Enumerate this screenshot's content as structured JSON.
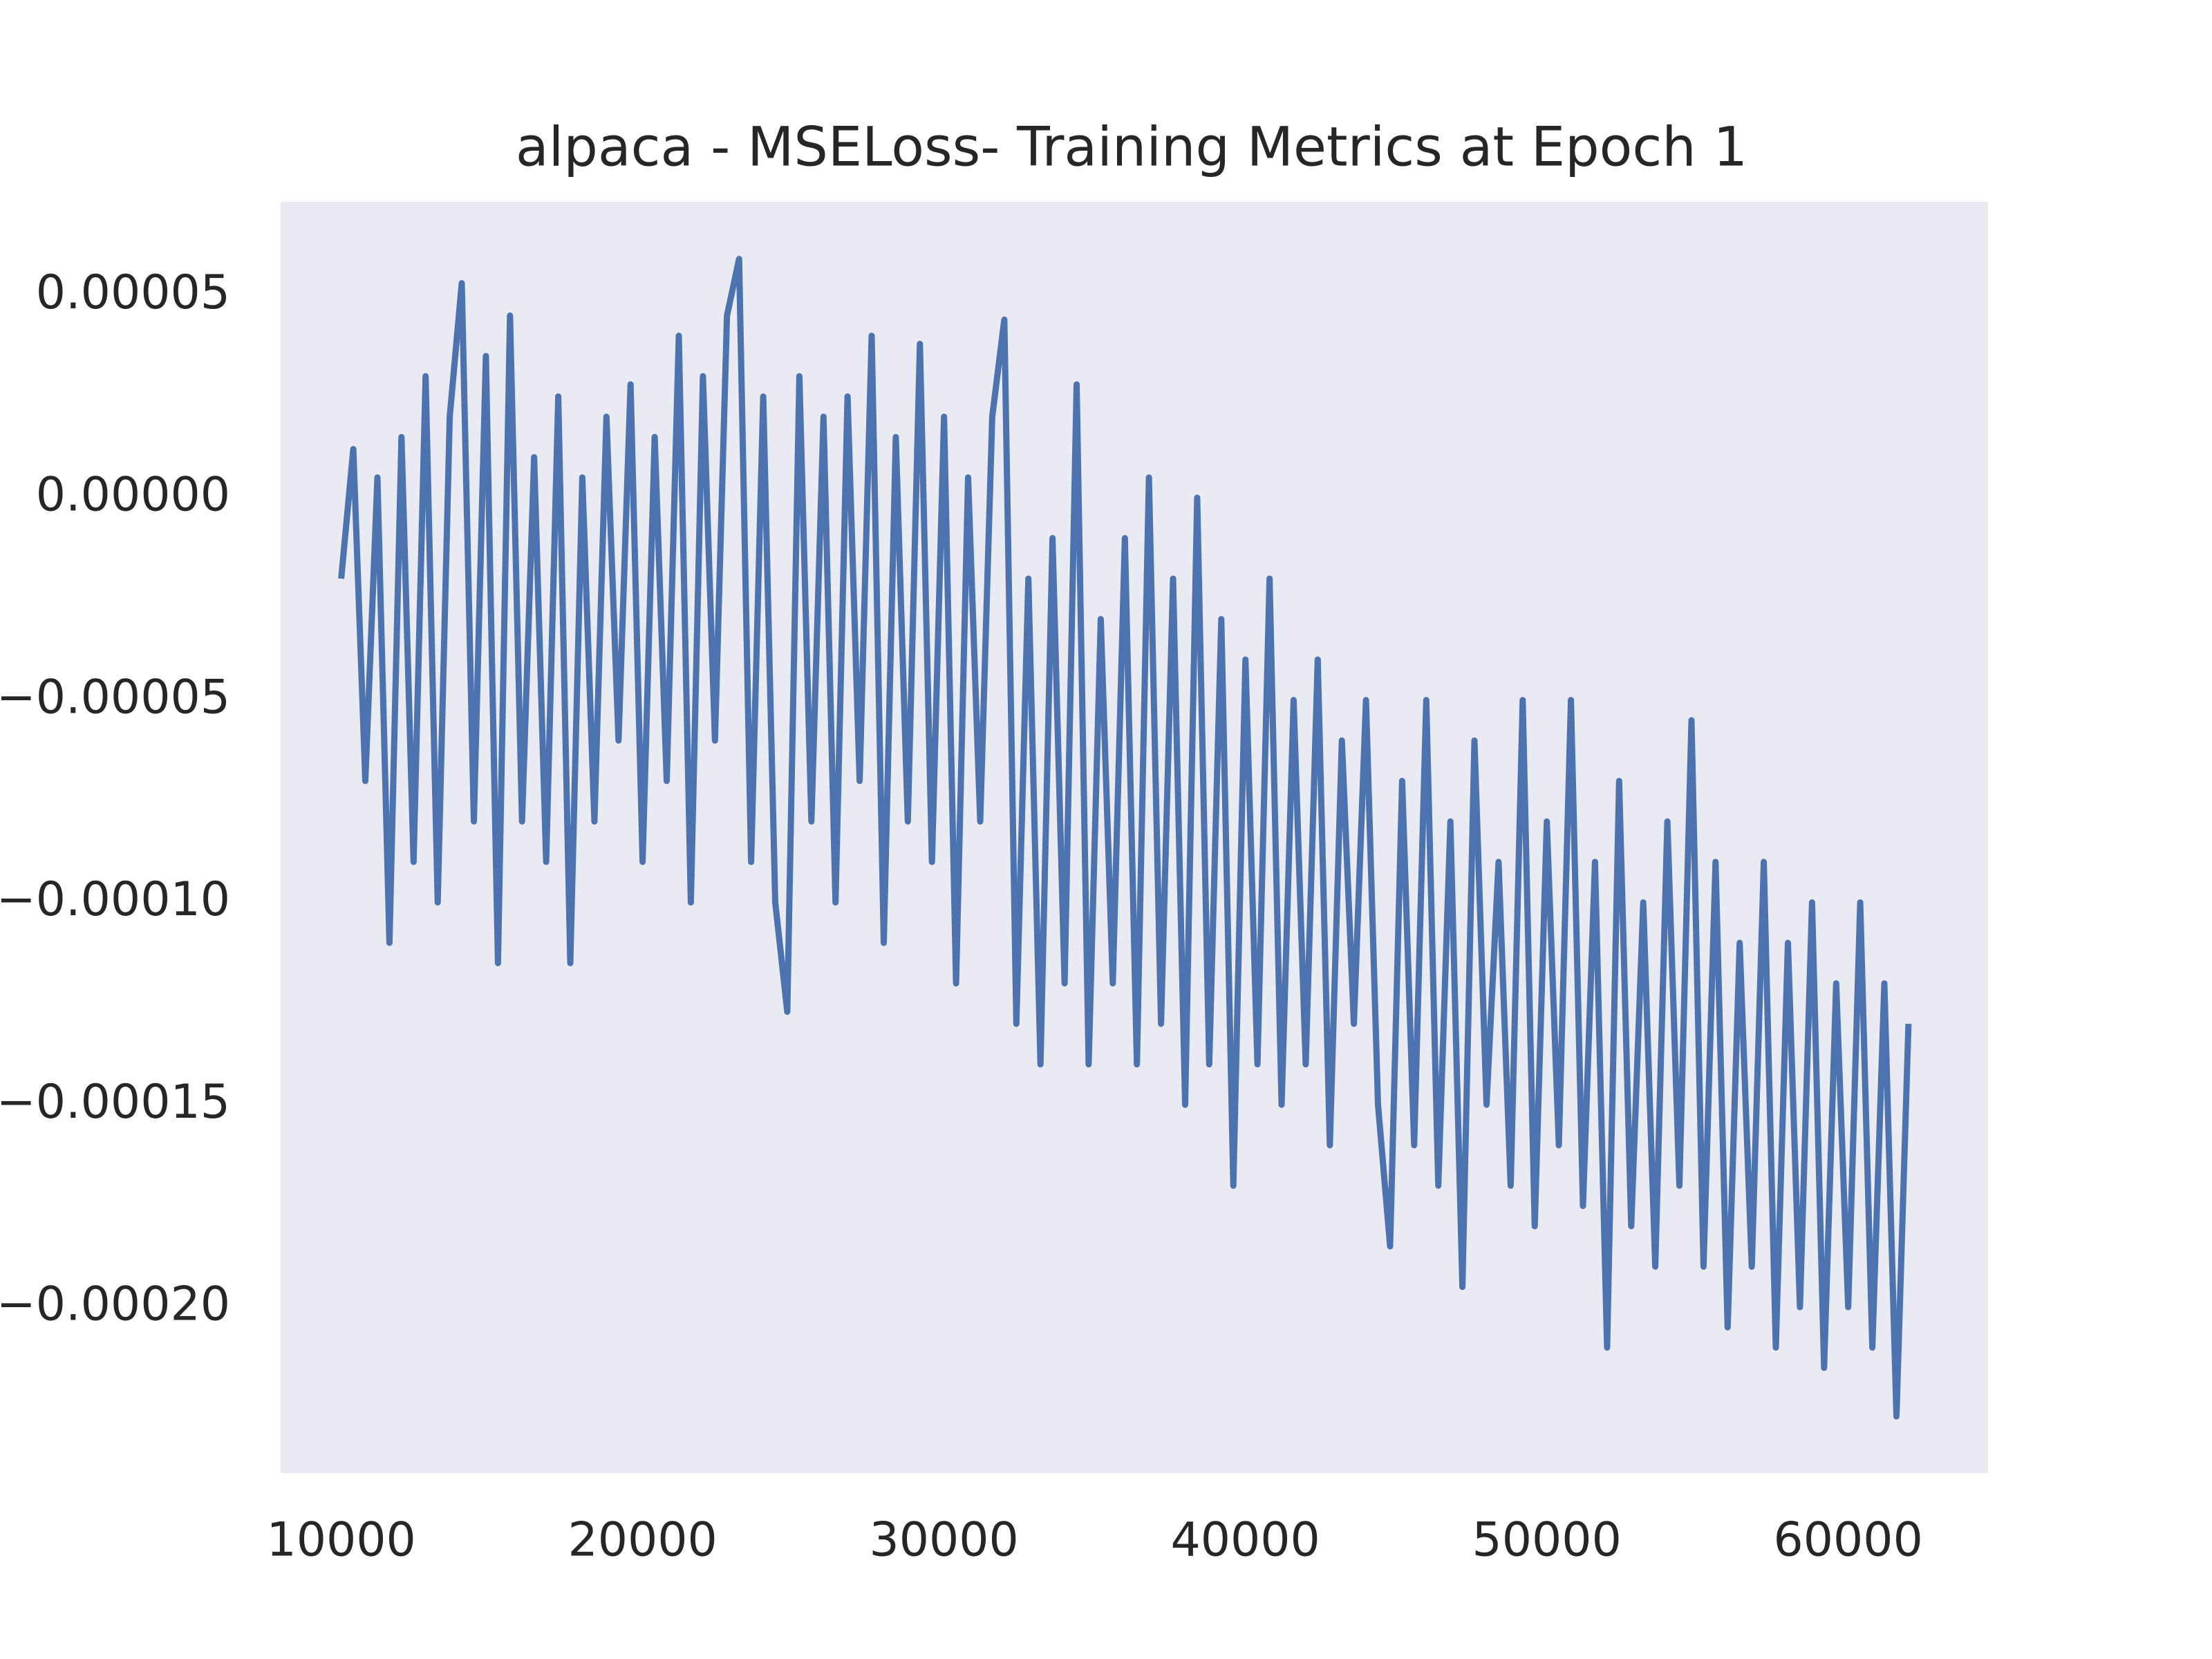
{
  "chart_data": {
    "type": "line",
    "title": "alpaca - MSELoss- Training Metrics at Epoch 1",
    "x": [
      10000,
      10400,
      10800,
      11200,
      11600,
      12000,
      12400,
      12800,
      13200,
      13600,
      14000,
      14400,
      14800,
      15200,
      15600,
      16000,
      16400,
      16800,
      17200,
      17600,
      18000,
      18400,
      18800,
      19200,
      19600,
      20000,
      20400,
      20800,
      21200,
      21600,
      22000,
      22400,
      22800,
      23200,
      23600,
      24000,
      24400,
      24800,
      25200,
      25600,
      26000,
      26400,
      26800,
      27200,
      27600,
      28000,
      28400,
      28800,
      29200,
      29600,
      30000,
      30400,
      30800,
      31200,
      31600,
      32000,
      32400,
      32800,
      33200,
      33600,
      34000,
      34400,
      34800,
      35200,
      35600,
      36000,
      36400,
      36800,
      37200,
      37600,
      38000,
      38400,
      38800,
      39200,
      39600,
      40000,
      40400,
      40800,
      41200,
      41600,
      42000,
      42400,
      42800,
      43200,
      43600,
      44000,
      44400,
      44800,
      45200,
      45600,
      46000,
      46400,
      46800,
      47200,
      47600,
      48000,
      48400,
      48800,
      49200,
      49600,
      50000,
      50400,
      50800,
      51200,
      51600,
      52000,
      52400,
      52800,
      53200,
      53600,
      54000,
      54400,
      54800,
      55200,
      55600,
      56000,
      56400,
      56800,
      57200,
      57600,
      58000,
      58400,
      58800,
      59200,
      59600,
      60000,
      60400,
      60800,
      61200,
      61600,
      62000
    ],
    "series": [
      {
        "color": "#4c72b0",
        "values": [
          -2e-05,
          1.2e-05,
          -7e-05,
          5e-06,
          -0.00011,
          1.5e-05,
          -9e-05,
          3e-05,
          -0.0001,
          2e-05,
          5.3e-05,
          -8e-05,
          3.5e-05,
          -0.000115,
          4.5e-05,
          -8e-05,
          1e-05,
          -9e-05,
          2.5e-05,
          -0.000115,
          5e-06,
          -8e-05,
          2e-05,
          -6e-05,
          2.8e-05,
          -9e-05,
          1.5e-05,
          -7e-05,
          4e-05,
          -0.0001,
          3e-05,
          -6e-05,
          4.5e-05,
          5.9e-05,
          -9e-05,
          2.5e-05,
          -0.0001,
          -0.000127,
          3e-05,
          -8e-05,
          2e-05,
          -0.0001,
          2.5e-05,
          -7e-05,
          4e-05,
          -0.00011,
          1.5e-05,
          -8e-05,
          3.8e-05,
          -9e-05,
          2e-05,
          -0.00012,
          5e-06,
          -8e-05,
          2e-05,
          4.4e-05,
          -0.00013,
          -2e-05,
          -0.00014,
          -1e-05,
          -0.00012,
          2.8e-05,
          -0.00014,
          -3e-05,
          -0.00012,
          -1e-05,
          -0.00014,
          5e-06,
          -0.00013,
          -2e-05,
          -0.00015,
          0,
          -0.00014,
          -3e-05,
          -0.00017,
          -4e-05,
          -0.00014,
          -2e-05,
          -0.00015,
          -5e-05,
          -0.00014,
          -4e-05,
          -0.00016,
          -6e-05,
          -0.00013,
          -5e-05,
          -0.00015,
          -0.000185,
          -7e-05,
          -0.00016,
          -5e-05,
          -0.00017,
          -8e-05,
          -0.000195,
          -6e-05,
          -0.00015,
          -9e-05,
          -0.00017,
          -5e-05,
          -0.00018,
          -8e-05,
          -0.00016,
          -5e-05,
          -0.000175,
          -9e-05,
          -0.00021,
          -7e-05,
          -0.00018,
          -0.0001,
          -0.00019,
          -8e-05,
          -0.00017,
          -5.5e-05,
          -0.00019,
          -9e-05,
          -0.000205,
          -0.00011,
          -0.00019,
          -9e-05,
          -0.00021,
          -0.00011,
          -0.0002,
          -0.0001,
          -0.000215,
          -0.00012,
          -0.0002,
          -0.0001,
          -0.00021,
          -0.00012,
          -0.000227,
          -0.00013
        ]
      }
    ],
    "xlim": [
      7990,
      64640
    ],
    "ylim": [
      -0.000241,
      7.31e-05
    ],
    "xticks": [
      10000,
      20000,
      30000,
      40000,
      50000,
      60000
    ],
    "yticks": [
      5e-05,
      {
        "value": 0,
        "label": "0.00000"
      },
      {
        "value": -5e-05,
        "label": "−0.00005"
      },
      {
        "value": -0.0001,
        "label": "−0.00010"
      },
      {
        "value": -0.00015,
        "label": "−0.00015"
      },
      {
        "value": -0.0002,
        "label": "−0.00020"
      }
    ],
    "grid": false,
    "background": "#eaeaf2"
  }
}
